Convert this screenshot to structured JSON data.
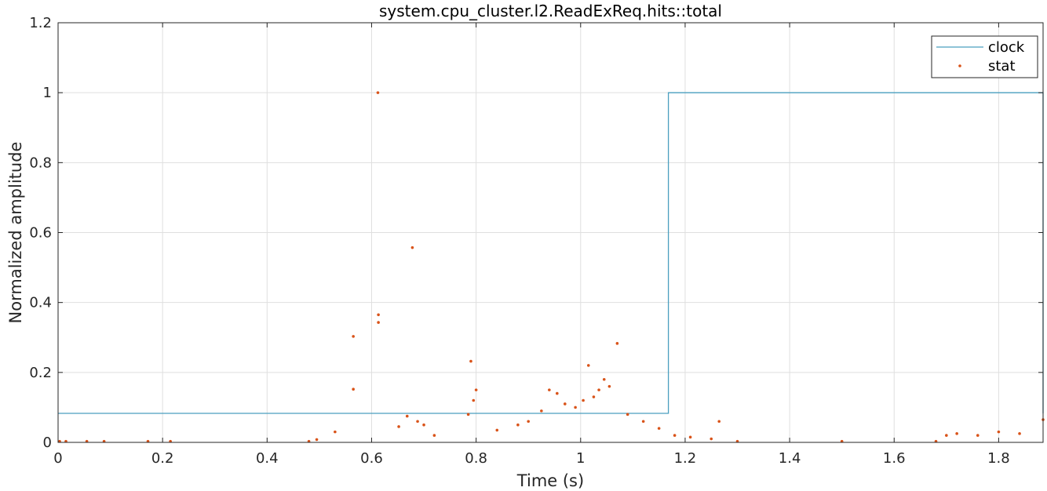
{
  "chart_data": {
    "type": "line",
    "title": "system.cpu_cluster.l2.ReadExReq.hits::total",
    "xlabel": "Time (s)",
    "ylabel": "Normalized amplitude",
    "xlim": [
      0,
      1.885
    ],
    "ylim": [
      0,
      1.2
    ],
    "xticks": [
      0,
      0.2,
      0.4,
      0.6,
      0.8,
      1,
      1.2,
      1.4,
      1.6,
      1.8
    ],
    "xtick_labels": [
      "0",
      "0.2",
      "0.4",
      "0.6",
      "0.8",
      "1",
      "1.2",
      "1.4",
      "1.6",
      "1.8"
    ],
    "yticks": [
      0,
      0.2,
      0.4,
      0.6,
      0.8,
      1,
      1.2
    ],
    "ytick_labels": [
      "0",
      "0.2",
      "0.4",
      "0.6",
      "0.8",
      "1",
      "1.2"
    ],
    "grid": true,
    "legend_position": "top-right",
    "series": [
      {
        "name": "clock",
        "style": "line",
        "color": "#4a9fbf",
        "x": [
          0,
          1.168,
          1.168,
          1.885,
          1.885
        ],
        "y": [
          0.083,
          0.083,
          1.0,
          1.0,
          0.083
        ]
      },
      {
        "name": "stat",
        "style": "markers",
        "color": "#d95319",
        "x": [
          0.003,
          0.015,
          0.055,
          0.088,
          0.172,
          0.215,
          0.48,
          0.495,
          0.53,
          0.565,
          0.565,
          0.612,
          0.613,
          0.613,
          0.678,
          0.652,
          0.668,
          0.688,
          0.7,
          0.72,
          0.785,
          0.79,
          0.795,
          0.8,
          0.84,
          0.88,
          0.9,
          0.925,
          0.94,
          0.955,
          0.97,
          0.99,
          1.005,
          1.015,
          1.025,
          1.035,
          1.045,
          1.055,
          1.07,
          1.09,
          1.12,
          1.15,
          1.18,
          1.21,
          1.25,
          1.265,
          1.3,
          1.5,
          1.68,
          1.7,
          1.72,
          1.76,
          1.8,
          1.84,
          1.885
        ],
        "y": [
          0.003,
          0.003,
          0.003,
          0.003,
          0.003,
          0.003,
          0.003,
          0.008,
          0.03,
          0.303,
          0.152,
          1.0,
          0.365,
          0.343,
          0.557,
          0.045,
          0.075,
          0.06,
          0.05,
          0.02,
          0.08,
          0.232,
          0.12,
          0.15,
          0.035,
          0.05,
          0.06,
          0.09,
          0.15,
          0.14,
          0.11,
          0.1,
          0.12,
          0.22,
          0.13,
          0.15,
          0.18,
          0.16,
          0.283,
          0.08,
          0.06,
          0.04,
          0.02,
          0.015,
          0.01,
          0.06,
          0.003,
          0.003,
          0.003,
          0.02,
          0.025,
          0.02,
          0.03,
          0.025,
          0.065
        ]
      }
    ]
  }
}
